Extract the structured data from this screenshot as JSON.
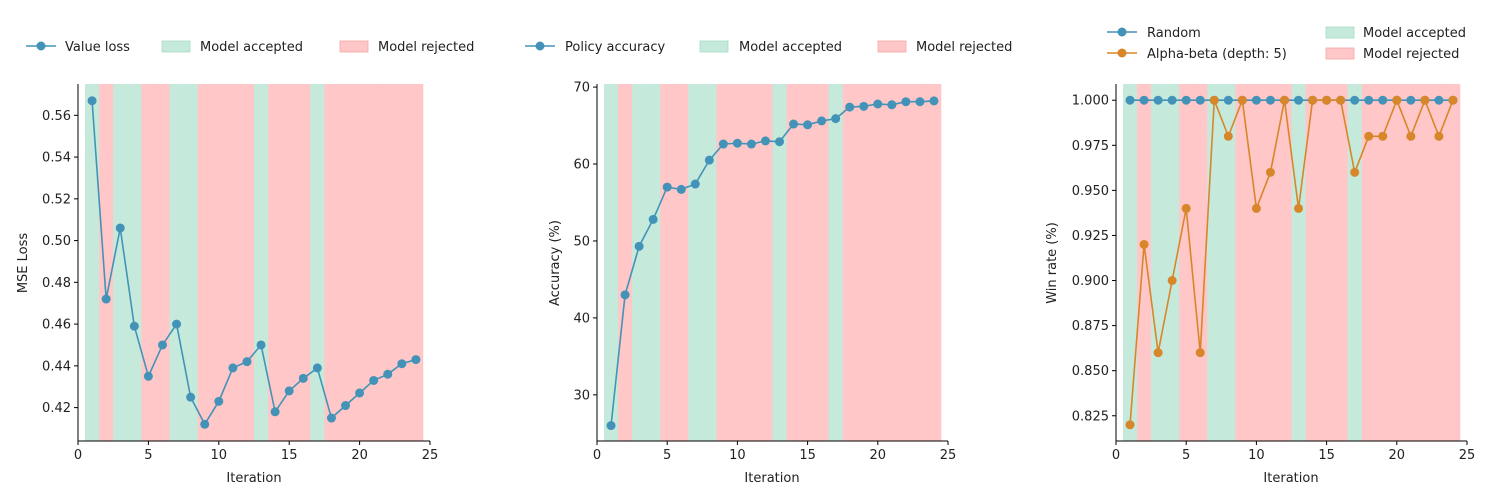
{
  "chart_data": [
    {
      "type": "line",
      "xlabel": "Iteration",
      "ylabel": "MSE Loss",
      "xlim": [
        0,
        25
      ],
      "ylim": [
        0.404,
        0.575
      ],
      "xticks": [
        0,
        5,
        10,
        15,
        20,
        25
      ],
      "yticks": [
        0.42,
        0.44,
        0.46,
        0.48,
        0.5,
        0.52,
        0.54,
        0.56
      ],
      "ytick_decimals": 2,
      "legend_position": "top",
      "x": [
        1,
        2,
        3,
        4,
        5,
        6,
        7,
        8,
        9,
        10,
        11,
        12,
        13,
        14,
        15,
        16,
        17,
        18,
        19,
        20,
        21,
        22,
        23,
        24
      ],
      "series": [
        {
          "name": "Value loss",
          "color": "#4393b9",
          "values": [
            0.567,
            0.472,
            0.506,
            0.459,
            0.435,
            0.45,
            0.46,
            0.425,
            0.412,
            0.423,
            0.439,
            0.442,
            0.45,
            0.418,
            0.428,
            0.434,
            0.439,
            0.415,
            0.421,
            0.427,
            0.433,
            0.436,
            0.441,
            0.443
          ]
        }
      ],
      "band_labels": {
        "accepted": "Model accepted",
        "rejected": "Model rejected"
      },
      "band_colors": {
        "accepted": "#c5eadb",
        "rejected": "#ffc7c7"
      },
      "bands": [
        "accepted",
        "rejected",
        "accepted",
        "accepted",
        "rejected",
        "rejected",
        "accepted",
        "accepted",
        "rejected",
        "rejected",
        "rejected",
        "rejected",
        "accepted",
        "rejected",
        "rejected",
        "rejected",
        "accepted",
        "rejected",
        "rejected",
        "rejected",
        "rejected",
        "rejected",
        "rejected",
        "rejected"
      ]
    },
    {
      "type": "line",
      "xlabel": "Iteration",
      "ylabel": "Accuracy (%)",
      "xlim": [
        0,
        25
      ],
      "ylim": [
        24,
        70.4
      ],
      "xticks": [
        0,
        5,
        10,
        15,
        20,
        25
      ],
      "yticks": [
        30,
        40,
        50,
        60,
        70
      ],
      "ytick_decimals": 0,
      "legend_position": "top",
      "x": [
        1,
        2,
        3,
        4,
        5,
        6,
        7,
        8,
        9,
        10,
        11,
        12,
        13,
        14,
        15,
        16,
        17,
        18,
        19,
        20,
        21,
        22,
        23,
        24
      ],
      "series": [
        {
          "name": "Policy accuracy",
          "color": "#4393b9",
          "values": [
            26.0,
            43.0,
            49.3,
            52.8,
            57.0,
            56.7,
            57.4,
            60.5,
            62.6,
            62.7,
            62.6,
            63.0,
            62.9,
            65.2,
            65.1,
            65.6,
            65.9,
            67.4,
            67.5,
            67.8,
            67.7,
            68.1,
            68.1,
            68.2
          ]
        }
      ],
      "band_labels": {
        "accepted": "Model accepted",
        "rejected": "Model rejected"
      },
      "band_colors": {
        "accepted": "#c5eadb",
        "rejected": "#ffc7c7"
      },
      "bands": [
        "accepted",
        "rejected",
        "accepted",
        "accepted",
        "rejected",
        "rejected",
        "accepted",
        "accepted",
        "rejected",
        "rejected",
        "rejected",
        "rejected",
        "accepted",
        "rejected",
        "rejected",
        "rejected",
        "accepted",
        "rejected",
        "rejected",
        "rejected",
        "rejected",
        "rejected",
        "rejected",
        "rejected"
      ]
    },
    {
      "type": "line",
      "xlabel": "Iteration",
      "ylabel": "Win rate (%)",
      "xlim": [
        0,
        25
      ],
      "ylim": [
        0.811,
        1.009
      ],
      "xticks": [
        0,
        5,
        10,
        15,
        20,
        25
      ],
      "yticks": [
        0.825,
        0.85,
        0.875,
        0.9,
        0.925,
        0.95,
        0.975,
        1.0
      ],
      "ytick_decimals": 3,
      "legend_position": "top",
      "x": [
        1,
        2,
        3,
        4,
        5,
        6,
        7,
        8,
        9,
        10,
        11,
        12,
        13,
        14,
        15,
        16,
        17,
        18,
        19,
        20,
        21,
        22,
        23,
        24
      ],
      "series": [
        {
          "name": "Random",
          "color": "#4393b9",
          "values": [
            1,
            1,
            1,
            1,
            1,
            1,
            1,
            1,
            1,
            1,
            1,
            1,
            1,
            1,
            1,
            1,
            1,
            1,
            1,
            1,
            1,
            1,
            1,
            1
          ]
        },
        {
          "name": "Alpha-beta (depth: 5)",
          "color": "#d8862a",
          "values": [
            0.82,
            0.92,
            0.86,
            0.9,
            0.94,
            0.86,
            1.0,
            0.98,
            1.0,
            0.94,
            0.96,
            1.0,
            0.94,
            1.0,
            1.0,
            1.0,
            0.96,
            0.98,
            0.98,
            1.0,
            0.98,
            1.0,
            0.98,
            1.0
          ]
        }
      ],
      "band_labels": {
        "accepted": "Model accepted",
        "rejected": "Model rejected"
      },
      "band_colors": {
        "accepted": "#c5eadb",
        "rejected": "#ffc7c7"
      },
      "bands": [
        "accepted",
        "rejected",
        "accepted",
        "accepted",
        "rejected",
        "rejected",
        "accepted",
        "accepted",
        "rejected",
        "rejected",
        "rejected",
        "rejected",
        "accepted",
        "rejected",
        "rejected",
        "rejected",
        "accepted",
        "rejected",
        "rejected",
        "rejected",
        "rejected",
        "rejected",
        "rejected",
        "rejected"
      ]
    }
  ]
}
